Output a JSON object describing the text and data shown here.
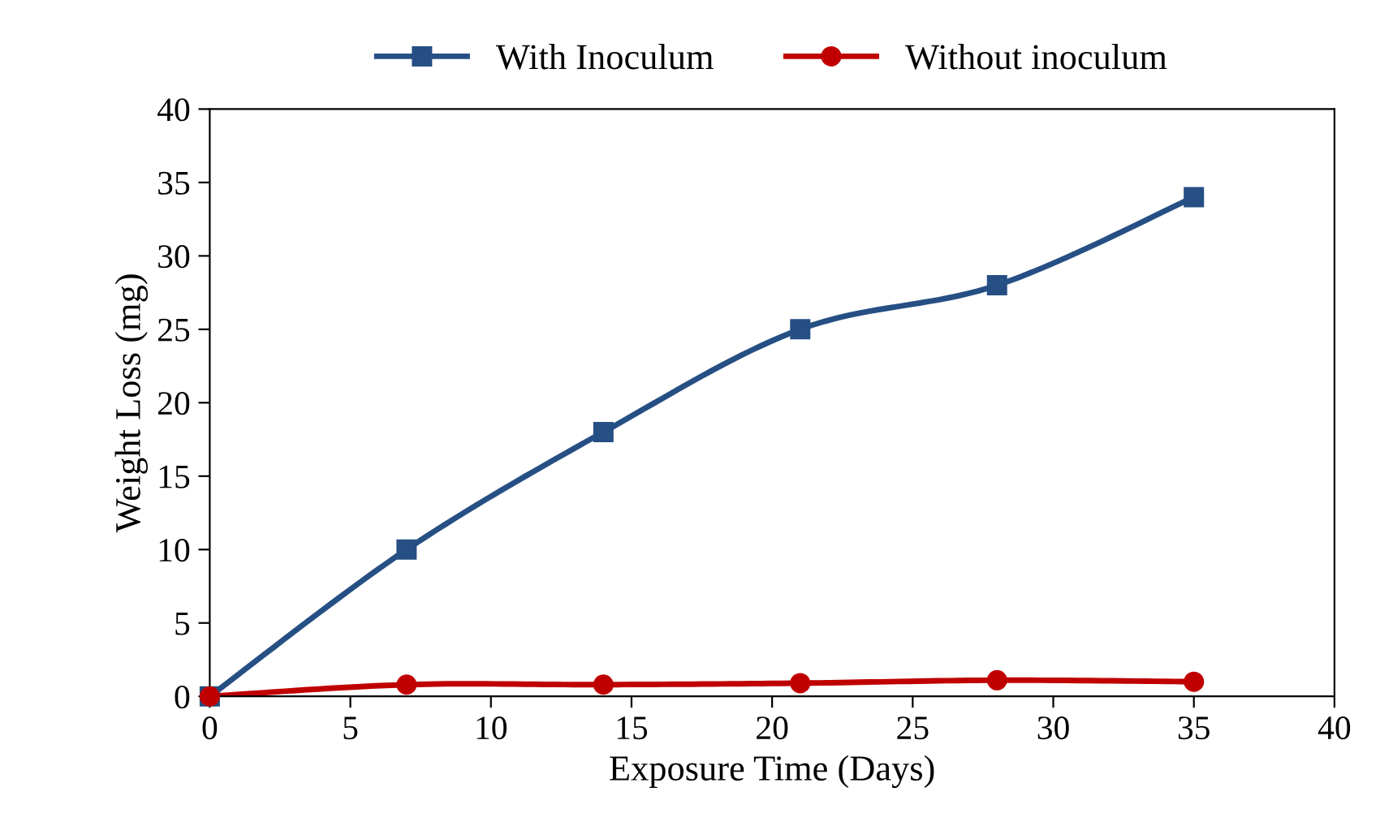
{
  "chart_data": {
    "type": "line",
    "xlabel": "Exposure Time (Days)",
    "ylabel": "Weight Loss (mg)",
    "x": [
      0,
      7,
      14,
      21,
      28,
      35
    ],
    "series": [
      {
        "name": "With Inoculum",
        "color": "#264f84",
        "marker": "square",
        "values": [
          0,
          10,
          18,
          25,
          28,
          34
        ]
      },
      {
        "name": "Without inoculum",
        "color": "#c00000",
        "marker": "circle",
        "values": [
          0,
          0.8,
          0.8,
          0.9,
          1.1,
          1.0
        ]
      }
    ],
    "xlim": [
      0,
      40
    ],
    "xticks": [
      0,
      5,
      10,
      15,
      20,
      25,
      30,
      35,
      40
    ],
    "ylim": [
      0,
      40
    ],
    "yticks": [
      0,
      5,
      10,
      15,
      20,
      25,
      30,
      35,
      40
    ],
    "grid": false,
    "legend": "top",
    "line_style": "solid"
  }
}
